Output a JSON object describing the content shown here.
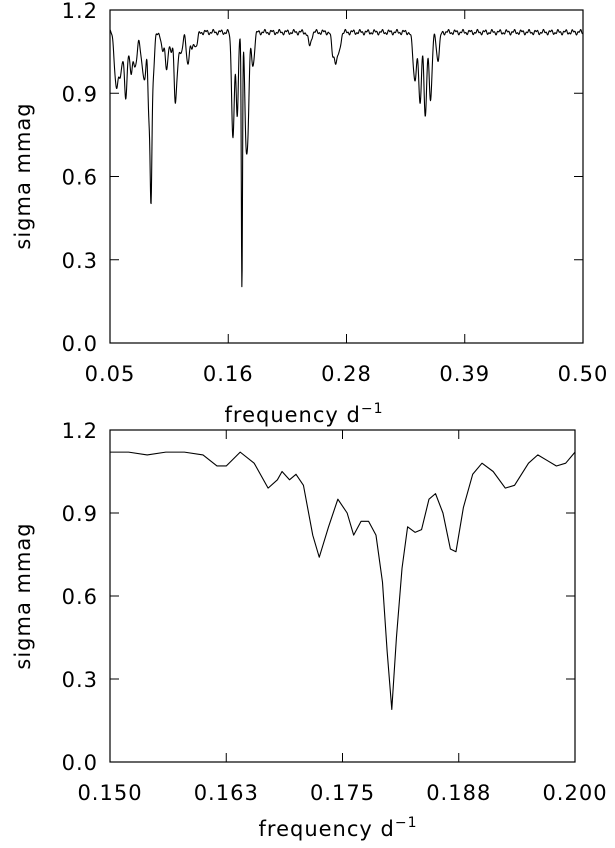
{
  "chart_data": [
    {
      "type": "line",
      "xlabel": "frequency d",
      "xlabel_sup": "−1",
      "ylabel": "sigma mmag",
      "xlim": [
        0.05,
        0.5
      ],
      "ylim": [
        0.0,
        1.2
      ],
      "xtick_values": [
        0.05,
        0.1625,
        0.275,
        0.3875,
        0.5
      ],
      "xtick_labels": [
        "0.05",
        "0.16",
        "0.28",
        "0.39",
        "0.50"
      ],
      "ytick_values": [
        0.0,
        0.3,
        0.6,
        0.9,
        1.2
      ],
      "ytick_labels": [
        "0.0",
        "0.3",
        "0.6",
        "0.9",
        "1.2"
      ],
      "baseline": 1.12,
      "series": [
        {
          "dips": [
            [
              0.056,
              0.93,
              0.0025
            ],
            [
              0.06,
              0.98,
              0.0025
            ],
            [
              0.065,
              0.88,
              0.002
            ],
            [
              0.07,
              0.98,
              0.002
            ],
            [
              0.074,
              1.0,
              0.0025
            ],
            [
              0.08,
              1.03,
              0.002
            ],
            [
              0.083,
              0.96,
              0.002
            ],
            [
              0.087,
              0.84,
              0.0015
            ],
            [
              0.089,
              0.6,
              0.0012
            ],
            [
              0.091,
              0.96,
              0.0018
            ],
            [
              0.1,
              1.05,
              0.002
            ],
            [
              0.104,
              0.99,
              0.0018
            ],
            [
              0.108,
              1.05,
              0.002
            ],
            [
              0.112,
              0.91,
              0.0015
            ],
            [
              0.114,
              1.0,
              0.002
            ],
            [
              0.118,
              1.05,
              0.002
            ],
            [
              0.124,
              1.01,
              0.002
            ],
            [
              0.128,
              1.06,
              0.002
            ],
            [
              0.132,
              1.07,
              0.002
            ],
            [
              0.167,
              0.74,
              0.0018
            ],
            [
              0.171,
              0.82,
              0.0015
            ],
            [
              0.1755,
              0.19,
              0.0008
            ],
            [
              0.179,
              0.86,
              0.0015
            ],
            [
              0.181,
              0.76,
              0.0018
            ],
            [
              0.186,
              1.0,
              0.002
            ],
            [
              0.24,
              1.07,
              0.002
            ],
            [
              0.262,
              1.04,
              0.0018
            ],
            [
              0.265,
              1.02,
              0.0018
            ],
            [
              0.268,
              1.05,
              0.002
            ],
            [
              0.34,
              0.95,
              0.0025
            ],
            [
              0.345,
              0.86,
              0.0018
            ],
            [
              0.35,
              0.81,
              0.0018
            ],
            [
              0.355,
              0.88,
              0.002
            ],
            [
              0.362,
              1.02,
              0.002
            ]
          ]
        }
      ]
    },
    {
      "type": "line",
      "xlabel": "frequency d",
      "xlabel_sup": "−1",
      "ylabel": "sigma mmag",
      "xlim": [
        0.15,
        0.2
      ],
      "ylim": [
        0.0,
        1.2
      ],
      "xtick_values": [
        0.15,
        0.1625,
        0.175,
        0.1875,
        0.2
      ],
      "xtick_labels": [
        "0.150",
        "0.163",
        "0.175",
        "0.188",
        "0.200"
      ],
      "ytick_values": [
        0.0,
        0.3,
        0.6,
        0.9,
        1.2
      ],
      "ytick_labels": [
        "0.0",
        "0.3",
        "0.6",
        "0.9",
        "1.2"
      ],
      "series": [
        {
          "points": [
            [
              0.15,
              1.12
            ],
            [
              0.152,
              1.12
            ],
            [
              0.154,
              1.11
            ],
            [
              0.156,
              1.12
            ],
            [
              0.158,
              1.12
            ],
            [
              0.16,
              1.11
            ],
            [
              0.1615,
              1.07
            ],
            [
              0.1625,
              1.07
            ],
            [
              0.164,
              1.12
            ],
            [
              0.1655,
              1.08
            ],
            [
              0.167,
              0.99
            ],
            [
              0.168,
              1.02
            ],
            [
              0.1685,
              1.05
            ],
            [
              0.1693,
              1.02
            ],
            [
              0.17,
              1.04
            ],
            [
              0.1708,
              1.0
            ],
            [
              0.1718,
              0.82
            ],
            [
              0.1725,
              0.74
            ],
            [
              0.1735,
              0.85
            ],
            [
              0.1745,
              0.95
            ],
            [
              0.1755,
              0.9
            ],
            [
              0.1762,
              0.82
            ],
            [
              0.177,
              0.87
            ],
            [
              0.1778,
              0.87
            ],
            [
              0.1786,
              0.82
            ],
            [
              0.1793,
              0.65
            ],
            [
              0.1798,
              0.4
            ],
            [
              0.1803,
              0.19
            ],
            [
              0.1808,
              0.45
            ],
            [
              0.1814,
              0.7
            ],
            [
              0.182,
              0.85
            ],
            [
              0.1828,
              0.83
            ],
            [
              0.1835,
              0.84
            ],
            [
              0.1843,
              0.95
            ],
            [
              0.185,
              0.97
            ],
            [
              0.1858,
              0.9
            ],
            [
              0.1866,
              0.77
            ],
            [
              0.1872,
              0.76
            ],
            [
              0.188,
              0.92
            ],
            [
              0.189,
              1.04
            ],
            [
              0.19,
              1.08
            ],
            [
              0.1912,
              1.05
            ],
            [
              0.1925,
              0.99
            ],
            [
              0.1935,
              1.0
            ],
            [
              0.195,
              1.08
            ],
            [
              0.196,
              1.11
            ],
            [
              0.197,
              1.09
            ],
            [
              0.198,
              1.07
            ],
            [
              0.199,
              1.08
            ],
            [
              0.2,
              1.12
            ]
          ]
        }
      ]
    }
  ]
}
